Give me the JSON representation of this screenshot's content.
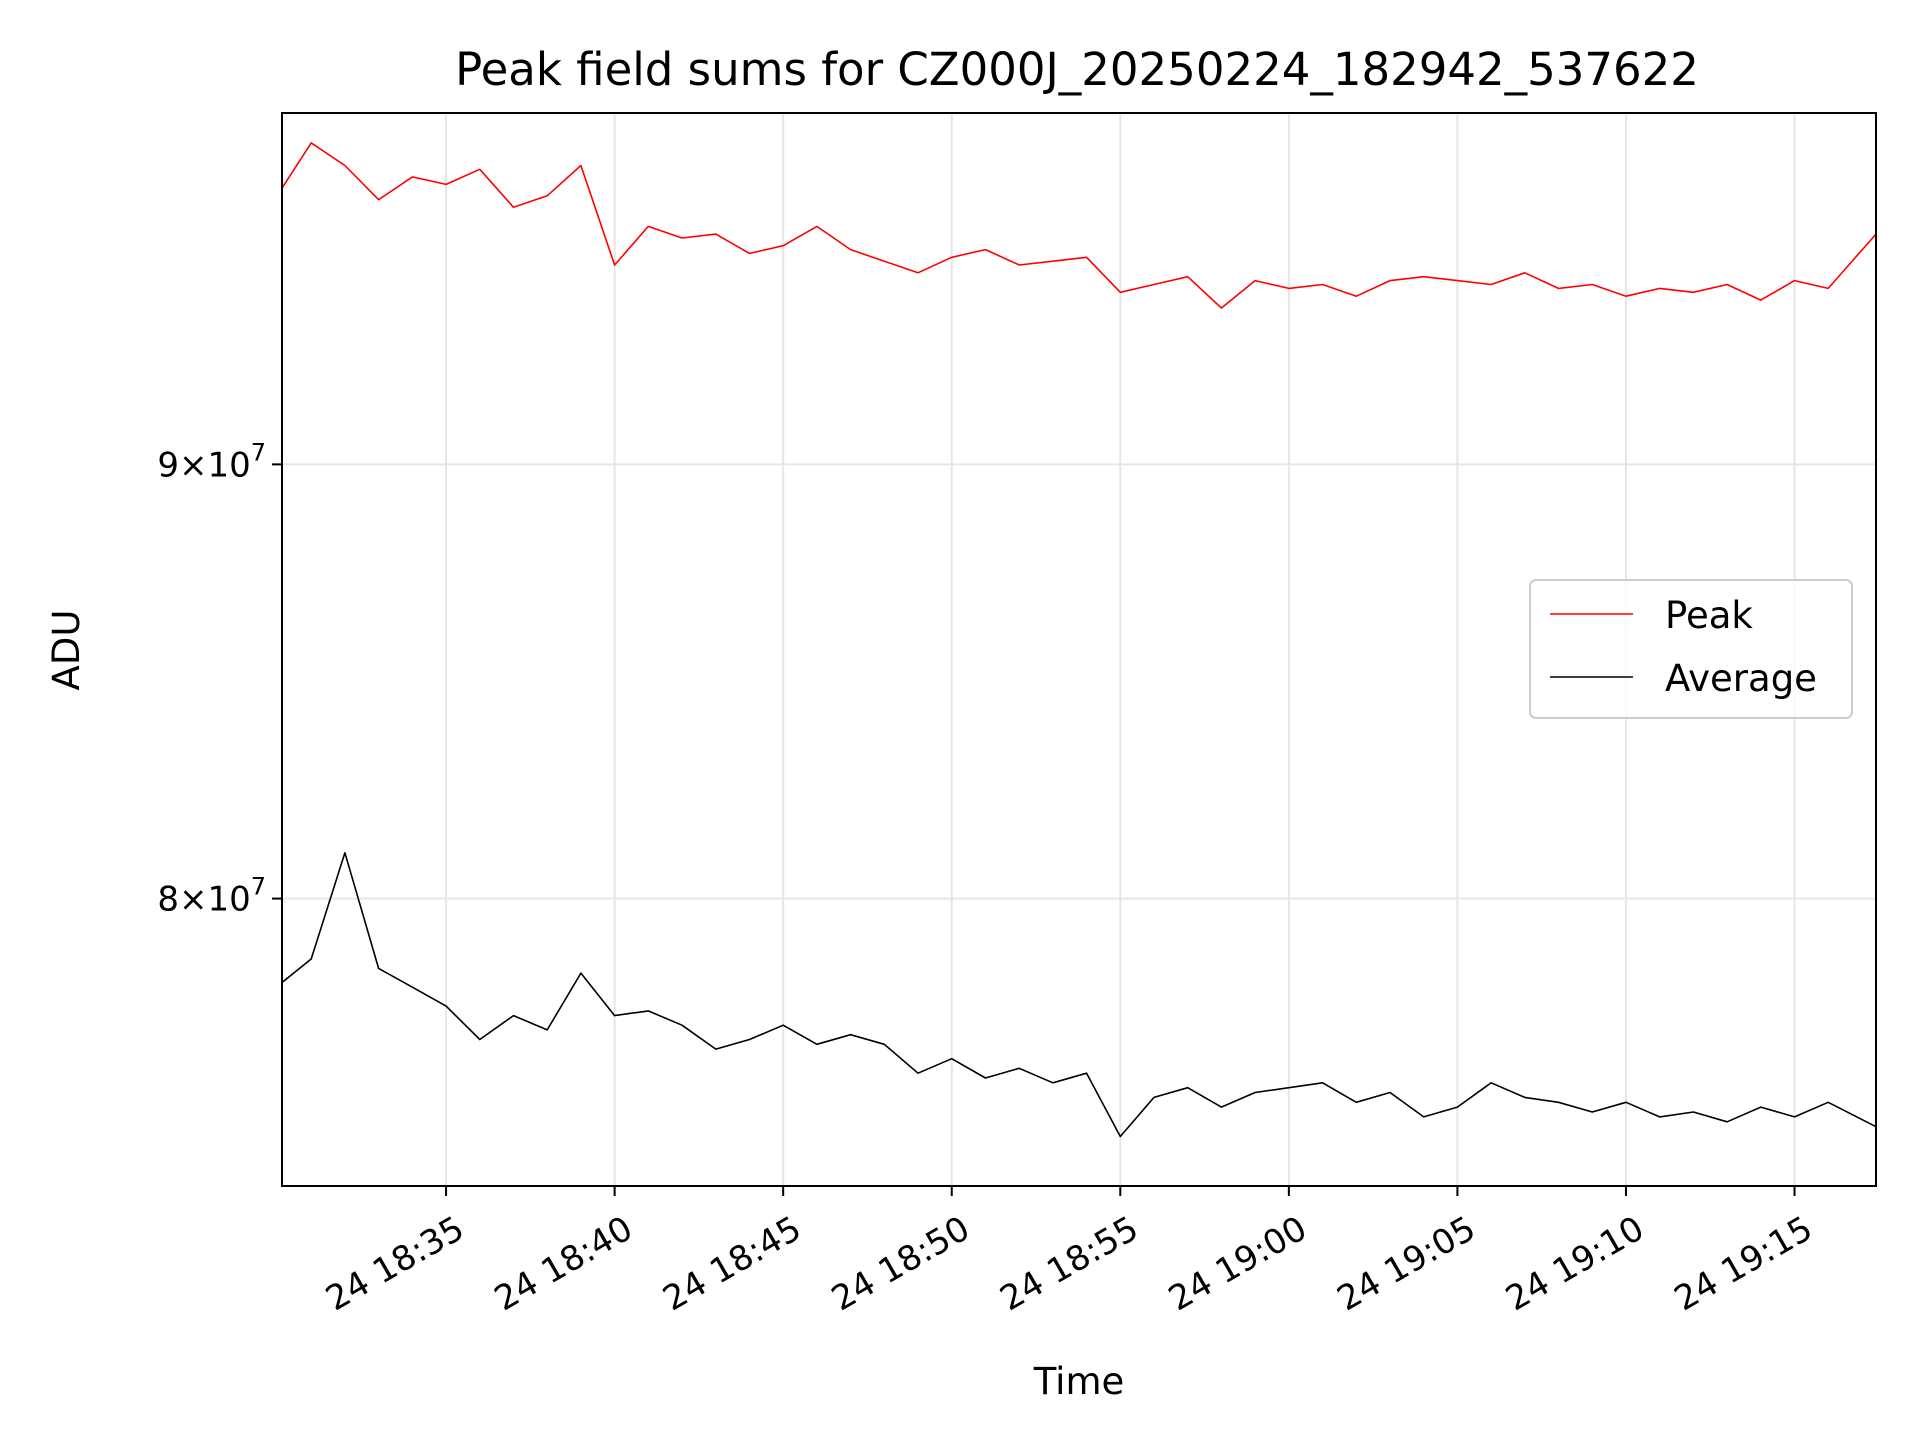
{
  "chart_data": {
    "type": "line",
    "title": "Peak field sums for CZ000J_20250224_182942_537622",
    "xlabel": "Time",
    "ylabel": "ADU",
    "yscale": "log",
    "grid": true,
    "legend_position": "center-right",
    "xlim": [
      "2025-02-24 18:30:08",
      "2025-02-24 19:17:25"
    ],
    "ylim": [
      74000000,
      99000000
    ],
    "x_ticks": [
      "24 18:35",
      "24 18:40",
      "24 18:45",
      "24 18:50",
      "24 18:55",
      "24 19:00",
      "24 19:05",
      "24 19:10",
      "24 19:15"
    ],
    "y_ticks": [
      {
        "value": 80000000,
        "label_base": "8",
        "label_exp": "7"
      },
      {
        "value": 90000000,
        "label_base": "9",
        "label_exp": "7"
      }
    ],
    "series": [
      {
        "name": "Peak",
        "color": "#ff0000",
        "points": [
          [
            "2025-02-24 18:30:08",
            97000000
          ],
          [
            "2025-02-24 18:31:00",
            98200000
          ],
          [
            "2025-02-24 18:32:00",
            97600000
          ],
          [
            "2025-02-24 18:33:00",
            96700000
          ],
          [
            "2025-02-24 18:34:00",
            97300000
          ],
          [
            "2025-02-24 18:35:00",
            97100000
          ],
          [
            "2025-02-24 18:36:00",
            97500000
          ],
          [
            "2025-02-24 18:37:00",
            96500000
          ],
          [
            "2025-02-24 18:38:00",
            96800000
          ],
          [
            "2025-02-24 18:39:00",
            97600000
          ],
          [
            "2025-02-24 18:40:00",
            95000000
          ],
          [
            "2025-02-24 18:41:00",
            96000000
          ],
          [
            "2025-02-24 18:42:00",
            95700000
          ],
          [
            "2025-02-24 18:43:00",
            95800000
          ],
          [
            "2025-02-24 18:44:00",
            95300000
          ],
          [
            "2025-02-24 18:45:00",
            95500000
          ],
          [
            "2025-02-24 18:46:00",
            96000000
          ],
          [
            "2025-02-24 18:47:00",
            95400000
          ],
          [
            "2025-02-24 18:48:00",
            95100000
          ],
          [
            "2025-02-24 18:49:00",
            94800000
          ],
          [
            "2025-02-24 18:50:00",
            95200000
          ],
          [
            "2025-02-24 18:51:00",
            95400000
          ],
          [
            "2025-02-24 18:52:00",
            95000000
          ],
          [
            "2025-02-24 18:53:00",
            95100000
          ],
          [
            "2025-02-24 18:54:00",
            95200000
          ],
          [
            "2025-02-24 18:55:00",
            94300000
          ],
          [
            "2025-02-24 18:56:00",
            94500000
          ],
          [
            "2025-02-24 18:57:00",
            94700000
          ],
          [
            "2025-02-24 18:58:00",
            93900000
          ],
          [
            "2025-02-24 18:59:00",
            94600000
          ],
          [
            "2025-02-24 19:00:00",
            94400000
          ],
          [
            "2025-02-24 19:01:00",
            94500000
          ],
          [
            "2025-02-24 19:02:00",
            94200000
          ],
          [
            "2025-02-24 19:03:00",
            94600000
          ],
          [
            "2025-02-24 19:04:00",
            94700000
          ],
          [
            "2025-02-24 19:05:00",
            94600000
          ],
          [
            "2025-02-24 19:06:00",
            94500000
          ],
          [
            "2025-02-24 19:07:00",
            94800000
          ],
          [
            "2025-02-24 19:08:00",
            94400000
          ],
          [
            "2025-02-24 19:09:00",
            94500000
          ],
          [
            "2025-02-24 19:10:00",
            94200000
          ],
          [
            "2025-02-24 19:11:00",
            94400000
          ],
          [
            "2025-02-24 19:12:00",
            94300000
          ],
          [
            "2025-02-24 19:13:00",
            94500000
          ],
          [
            "2025-02-24 19:14:00",
            94100000
          ],
          [
            "2025-02-24 19:15:00",
            94600000
          ],
          [
            "2025-02-24 19:16:00",
            94400000
          ],
          [
            "2025-02-24 19:17:25",
            95800000
          ]
        ]
      },
      {
        "name": "Average",
        "color": "#000000",
        "points": [
          [
            "2025-02-24 18:30:08",
            78200000
          ],
          [
            "2025-02-24 18:31:00",
            78700000
          ],
          [
            "2025-02-24 18:32:00",
            81000000
          ],
          [
            "2025-02-24 18:33:00",
            78500000
          ],
          [
            "2025-02-24 18:34:00",
            78100000
          ],
          [
            "2025-02-24 18:35:00",
            77700000
          ],
          [
            "2025-02-24 18:36:00",
            77000000
          ],
          [
            "2025-02-24 18:37:00",
            77500000
          ],
          [
            "2025-02-24 18:38:00",
            77200000
          ],
          [
            "2025-02-24 18:39:00",
            78400000
          ],
          [
            "2025-02-24 18:40:00",
            77500000
          ],
          [
            "2025-02-24 18:41:00",
            77600000
          ],
          [
            "2025-02-24 18:42:00",
            77300000
          ],
          [
            "2025-02-24 18:43:00",
            76800000
          ],
          [
            "2025-02-24 18:44:00",
            77000000
          ],
          [
            "2025-02-24 18:45:00",
            77300000
          ],
          [
            "2025-02-24 18:46:00",
            76900000
          ],
          [
            "2025-02-24 18:47:00",
            77100000
          ],
          [
            "2025-02-24 18:48:00",
            76900000
          ],
          [
            "2025-02-24 18:49:00",
            76300000
          ],
          [
            "2025-02-24 18:50:00",
            76600000
          ],
          [
            "2025-02-24 18:51:00",
            76200000
          ],
          [
            "2025-02-24 18:52:00",
            76400000
          ],
          [
            "2025-02-24 18:53:00",
            76100000
          ],
          [
            "2025-02-24 18:54:00",
            76300000
          ],
          [
            "2025-02-24 18:55:00",
            75000000
          ],
          [
            "2025-02-24 18:56:00",
            75800000
          ],
          [
            "2025-02-24 18:57:00",
            76000000
          ],
          [
            "2025-02-24 18:58:00",
            75600000
          ],
          [
            "2025-02-24 18:59:00",
            75900000
          ],
          [
            "2025-02-24 19:00:00",
            76000000
          ],
          [
            "2025-02-24 19:01:00",
            76100000
          ],
          [
            "2025-02-24 19:02:00",
            75700000
          ],
          [
            "2025-02-24 19:03:00",
            75900000
          ],
          [
            "2025-02-24 19:04:00",
            75400000
          ],
          [
            "2025-02-24 19:05:00",
            75600000
          ],
          [
            "2025-02-24 19:06:00",
            76100000
          ],
          [
            "2025-02-24 19:07:00",
            75800000
          ],
          [
            "2025-02-24 19:08:00",
            75700000
          ],
          [
            "2025-02-24 19:09:00",
            75500000
          ],
          [
            "2025-02-24 19:10:00",
            75700000
          ],
          [
            "2025-02-24 19:11:00",
            75400000
          ],
          [
            "2025-02-24 19:12:00",
            75500000
          ],
          [
            "2025-02-24 19:13:00",
            75300000
          ],
          [
            "2025-02-24 19:14:00",
            75600000
          ],
          [
            "2025-02-24 19:15:00",
            75400000
          ],
          [
            "2025-02-24 19:16:00",
            75700000
          ],
          [
            "2025-02-24 19:17:25",
            75200000
          ]
        ]
      }
    ]
  }
}
